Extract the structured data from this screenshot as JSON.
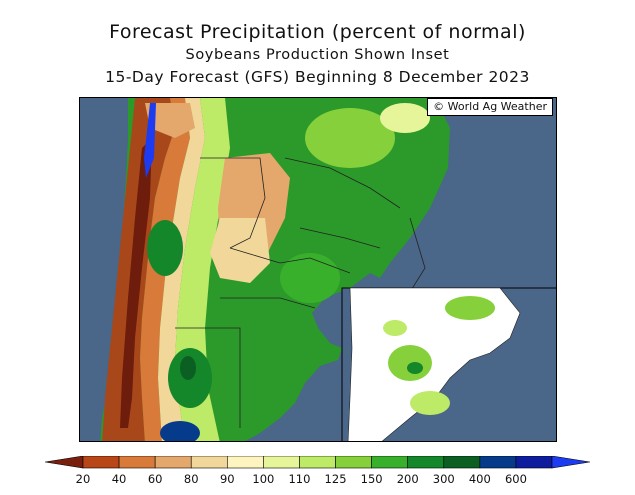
{
  "title": {
    "line1": "Forecast Precipitation (percent of normal)",
    "line2": "Soybeans Production Shown Inset",
    "line3": "15-Day Forecast (GFS) Beginning 8 December 2023"
  },
  "copyright": "© World Ag Weather",
  "legend": {
    "ticks": [
      "20",
      "40",
      "60",
      "80",
      "90",
      "100",
      "110",
      "125",
      "150",
      "200",
      "300",
      "400",
      "600"
    ],
    "colors": [
      "#7a1e0e",
      "#b84616",
      "#d77a3a",
      "#e4a86c",
      "#f2d79a",
      "#fdf4c0",
      "#e6f59a",
      "#bdea67",
      "#86d13b",
      "#38b02b",
      "#14872a",
      "#0b5f22",
      "#063a8a",
      "#0d1d9e",
      "#1d3cf2"
    ]
  },
  "map": {
    "ocean_color": "#4a6688",
    "land_color": "#2c9a2a"
  }
}
